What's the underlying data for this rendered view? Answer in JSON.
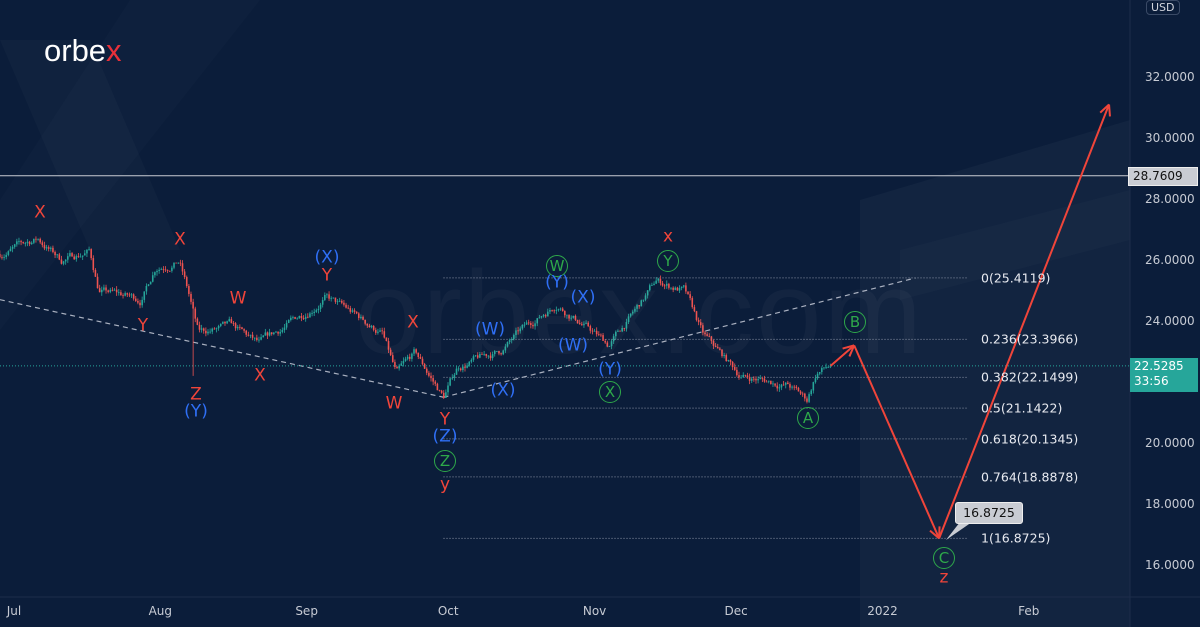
{
  "brand": {
    "logo_main": "orbe",
    "logo_accent": "x",
    "watermark": "orbex.com"
  },
  "currency": "USD",
  "colors": {
    "background": "#0b1d3a",
    "up": "#26a69a",
    "down": "#ef5350",
    "wave_red": "#f0453a",
    "wave_blue": "#2f6ff5",
    "wave_green": "#2ea84a",
    "projection": "#f0453a",
    "last_price_bg": "#26a69a"
  },
  "chart_data": {
    "type": "candlestick",
    "title": "",
    "x_ticks": [
      {
        "label": "Jul",
        "date": "2021-07-01"
      },
      {
        "label": "Aug",
        "date": "2021-08-01"
      },
      {
        "label": "Sep",
        "date": "2021-09-01"
      },
      {
        "label": "Oct",
        "date": "2021-10-01"
      },
      {
        "label": "Nov",
        "date": "2021-11-01"
      },
      {
        "label": "Dec",
        "date": "2021-12-01"
      },
      {
        "label": "2022",
        "date": "2022-01-01"
      },
      {
        "label": "Feb",
        "date": "2022-02-01"
      }
    ],
    "y_ticks": [
      "16.0000",
      "18.0000",
      "20.0000",
      "24.0000",
      "26.0000",
      "28.0000",
      "30.0000",
      "32.0000"
    ],
    "y_tick_values": [
      16,
      18,
      20,
      24,
      26,
      28,
      30,
      32
    ],
    "ylim": [
      15,
      34
    ],
    "grid": false,
    "price_path": [
      [
        "2021-06-28",
        26.2
      ],
      [
        "2021-07-06",
        26.7
      ],
      [
        "2021-07-11",
        26.0
      ],
      [
        "2021-07-17",
        26.3
      ],
      [
        "2021-07-19",
        25.0
      ],
      [
        "2021-07-28",
        24.7
      ],
      [
        "2021-07-31",
        25.8
      ],
      [
        "2021-08-05",
        26.0
      ],
      [
        "2021-08-07",
        24.9
      ],
      [
        "2021-08-09",
        23.6
      ],
      [
        "2021-08-16",
        23.8
      ],
      [
        "2021-08-22",
        23.2
      ],
      [
        "2021-08-31",
        24.2
      ],
      [
        "2021-09-05",
        24.8
      ],
      [
        "2021-09-17",
        23.6
      ],
      [
        "2021-09-20",
        22.2
      ],
      [
        "2021-09-24",
        22.9
      ],
      [
        "2021-09-30",
        21.5
      ],
      [
        "2021-10-03",
        22.5
      ],
      [
        "2021-10-12",
        23.0
      ],
      [
        "2021-10-16",
        23.6
      ],
      [
        "2021-10-24",
        24.6
      ],
      [
        "2021-10-28",
        24.1
      ],
      [
        "2021-11-04",
        23.2
      ],
      [
        "2021-11-11",
        24.6
      ],
      [
        "2021-11-14",
        25.3
      ],
      [
        "2021-11-20",
        25.0
      ],
      [
        "2021-11-24",
        23.5
      ],
      [
        "2021-12-02",
        22.2
      ],
      [
        "2021-12-12",
        21.9
      ],
      [
        "2021-12-16",
        21.4
      ],
      [
        "2021-12-18",
        22.3
      ],
      [
        "2021-12-21",
        22.5285
      ]
    ],
    "spikes": [
      {
        "date": "2021-08-08",
        "low": 22.2
      }
    ],
    "horizontal_line": {
      "price": 28.7609,
      "label": "28.7609"
    },
    "last_price": {
      "price": 22.5285,
      "label": "22.5285",
      "countdown": "33:56"
    },
    "fib_levels": [
      {
        "ratio": "0",
        "price": 25.4119,
        "label": "0(25.4119)"
      },
      {
        "ratio": "0.236",
        "price": 23.3966,
        "label": "0.236(23.3966)"
      },
      {
        "ratio": "0.382",
        "price": 22.1499,
        "label": "0.382(22.1499)"
      },
      {
        "ratio": "0.5",
        "price": 21.1422,
        "label": "0.5(21.1422)"
      },
      {
        "ratio": "0.618",
        "price": 20.1345,
        "label": "0.618(20.1345)"
      },
      {
        "ratio": "0.764",
        "price": 18.8878,
        "label": "0.764(18.8878)"
      },
      {
        "ratio": "1",
        "price": 16.8725,
        "label": "1(16.8725)"
      }
    ],
    "trendlines": [
      {
        "from": [
          "2021-06-28",
          24.7
        ],
        "to": [
          "2021-09-30",
          21.5
        ]
      },
      {
        "from": [
          "2021-09-30",
          21.5
        ],
        "to": [
          "2022-01-08",
          25.4119
        ]
      }
    ],
    "projection": [
      [
        "2021-12-21",
        22.5285
      ],
      [
        "2021-12-26",
        23.2
      ],
      [
        "2022-01-13",
        16.8725
      ],
      [
        "2022-02-18",
        31.1
      ]
    ],
    "target_tooltip": "16.8725",
    "wave_labels": [
      {
        "text": "X",
        "color": "red"
      },
      {
        "text": "X",
        "color": "red"
      },
      {
        "text": "Y",
        "color": "red"
      },
      {
        "text": "W",
        "color": "red"
      },
      {
        "text": "Z",
        "color": "red"
      },
      {
        "text": "(Y)",
        "color": "blue"
      },
      {
        "text": "X",
        "color": "red"
      },
      {
        "text": "(X)",
        "color": "blue"
      },
      {
        "text": "Y",
        "color": "red"
      },
      {
        "text": "X",
        "color": "red"
      },
      {
        "text": "W",
        "color": "red"
      },
      {
        "text": "Y",
        "color": "red"
      },
      {
        "text": "(Z)",
        "color": "blue"
      },
      {
        "text": "Z",
        "color": "green",
        "circled": true
      },
      {
        "text": "y",
        "color": "red"
      },
      {
        "text": "(W)",
        "color": "blue"
      },
      {
        "text": "(X)",
        "color": "blue"
      },
      {
        "text": "W",
        "color": "green",
        "circled": true
      },
      {
        "text": "(Y)",
        "color": "blue"
      },
      {
        "text": "(X)",
        "color": "blue"
      },
      {
        "text": "(W)",
        "color": "blue"
      },
      {
        "text": "(Y)",
        "color": "blue"
      },
      {
        "text": "X",
        "color": "green",
        "circled": true
      },
      {
        "text": "x",
        "color": "red"
      },
      {
        "text": "Y",
        "color": "green",
        "circled": true
      },
      {
        "text": "B",
        "color": "green",
        "circled": true
      },
      {
        "text": "A",
        "color": "green",
        "circled": true
      },
      {
        "text": "C",
        "color": "green",
        "circled": true
      },
      {
        "text": "z",
        "color": "red"
      }
    ]
  }
}
